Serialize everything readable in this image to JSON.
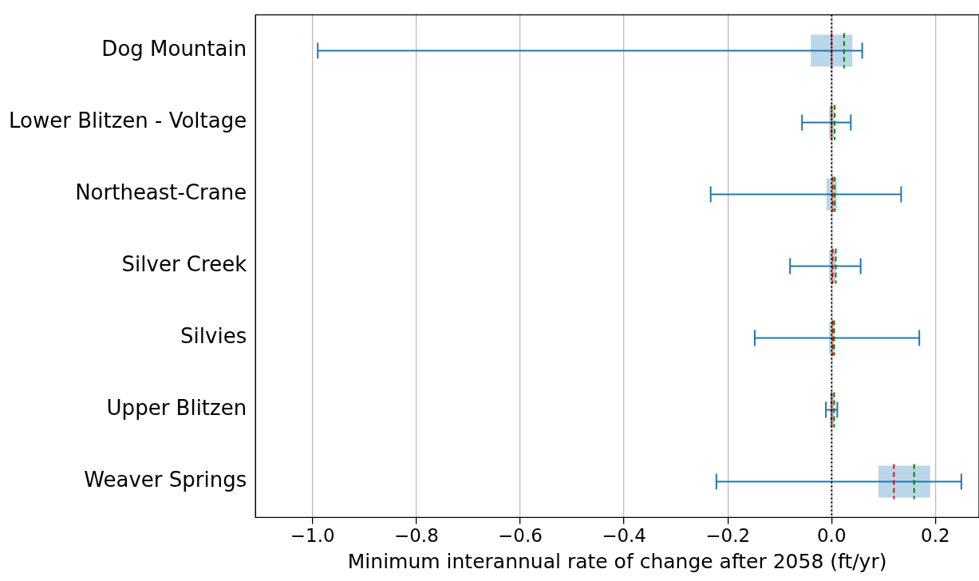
{
  "chart_data": {
    "type": "box",
    "orientation": "horizontal",
    "xlabel": "Minimum interannual rate of change after 2058 (ft/yr)",
    "categories": [
      "Dog Mountain",
      "Lower Blitzen - Voltage",
      "Northeast-Crane",
      "Silver Creek",
      "Silvies",
      "Upper Blitzen",
      "Weaver Springs"
    ],
    "series": [
      {
        "color": "#1f77b4",
        "boxes": [
          {
            "low": -0.99,
            "q1": -0.04,
            "median": 0.0,
            "q3": 0.04,
            "high": 0.059,
            "mean": 0.024
          },
          {
            "low": -0.057,
            "q1": -0.005,
            "median": 0.0,
            "q3": 0.005,
            "high": 0.037,
            "mean": 0.006
          },
          {
            "low": -0.233,
            "q1": -0.01,
            "median": 0.002,
            "q3": 0.01,
            "high": 0.134,
            "mean": 0.006
          },
          {
            "low": -0.08,
            "q1": -0.005,
            "median": 0.002,
            "q3": 0.008,
            "high": 0.056,
            "mean": 0.008
          },
          {
            "low": -0.148,
            "q1": -0.005,
            "median": 0.002,
            "q3": 0.005,
            "high": 0.169,
            "mean": 0.005
          },
          {
            "low": -0.011,
            "q1": -0.003,
            "median": 0.0,
            "q3": 0.005,
            "high": 0.011,
            "mean": 0.005
          },
          {
            "low": -0.222,
            "q1": 0.09,
            "median": 0.12,
            "q3": 0.19,
            "high": 0.25,
            "mean": 0.159
          }
        ]
      }
    ],
    "xlim": [
      -1.11,
      0.284
    ],
    "xticks": [
      {
        "value": -1.0,
        "label": "−1.0"
      },
      {
        "value": -0.8,
        "label": "−0.8"
      },
      {
        "value": -0.6,
        "label": "−0.6"
      },
      {
        "value": -0.4,
        "label": "−0.4"
      },
      {
        "value": -0.2,
        "label": "−0.2"
      },
      {
        "value": 0,
        "label": "0.0"
      },
      {
        "value": 0.2,
        "label": "0.2"
      }
    ],
    "grid": "x",
    "ref_lines": [
      {
        "axis": "x",
        "value": 0,
        "color": "#000000",
        "line_style": "dotted"
      }
    ]
  }
}
